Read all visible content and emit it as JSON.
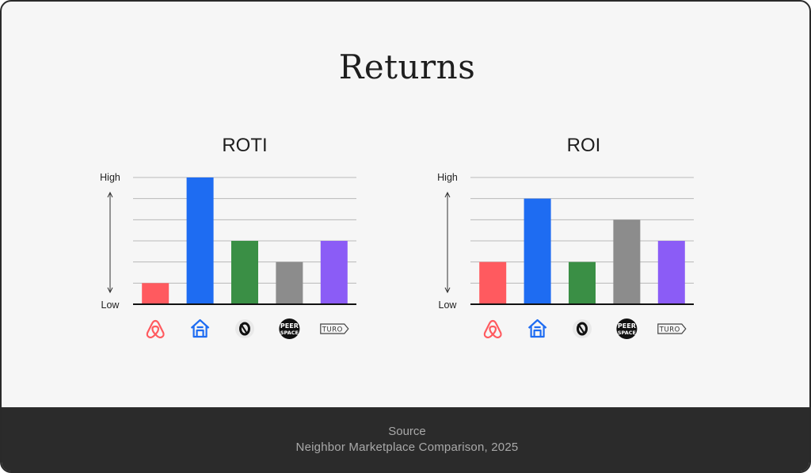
{
  "title": "Returns",
  "footer": {
    "source_label": "Source",
    "source_text": "Neighbor Marketplace Comparison, 2025"
  },
  "colors": {
    "airbnb": "#ff5a5f",
    "neighbor": "#1e6cf2",
    "outdoorsy": "#3a8f45",
    "peerspace": "#8c8c8c",
    "turo": "#8b5cf6"
  },
  "chart_data": [
    {
      "type": "bar",
      "title": "ROTI",
      "ylabel_high": "High",
      "ylabel_low": "Low",
      "ylim": [
        0,
        6
      ],
      "grid": true,
      "categories": [
        "Airbnb",
        "Neighbor",
        "Outdoorsy",
        "Peerspace",
        "Turo"
      ],
      "icons": [
        "airbnb-icon",
        "neighbor-house-icon",
        "outdoorsy-icon",
        "peerspace-icon",
        "turo-icon"
      ],
      "values": [
        1,
        6,
        3,
        2,
        3
      ]
    },
    {
      "type": "bar",
      "title": "ROI",
      "ylabel_high": "High",
      "ylabel_low": "Low",
      "ylim": [
        0,
        6
      ],
      "grid": true,
      "categories": [
        "Airbnb",
        "Neighbor",
        "Outdoorsy",
        "Peerspace",
        "Turo"
      ],
      "icons": [
        "airbnb-icon",
        "neighbor-house-icon",
        "outdoorsy-icon",
        "peerspace-icon",
        "turo-icon"
      ],
      "values": [
        2,
        5,
        2,
        4,
        3
      ]
    }
  ]
}
